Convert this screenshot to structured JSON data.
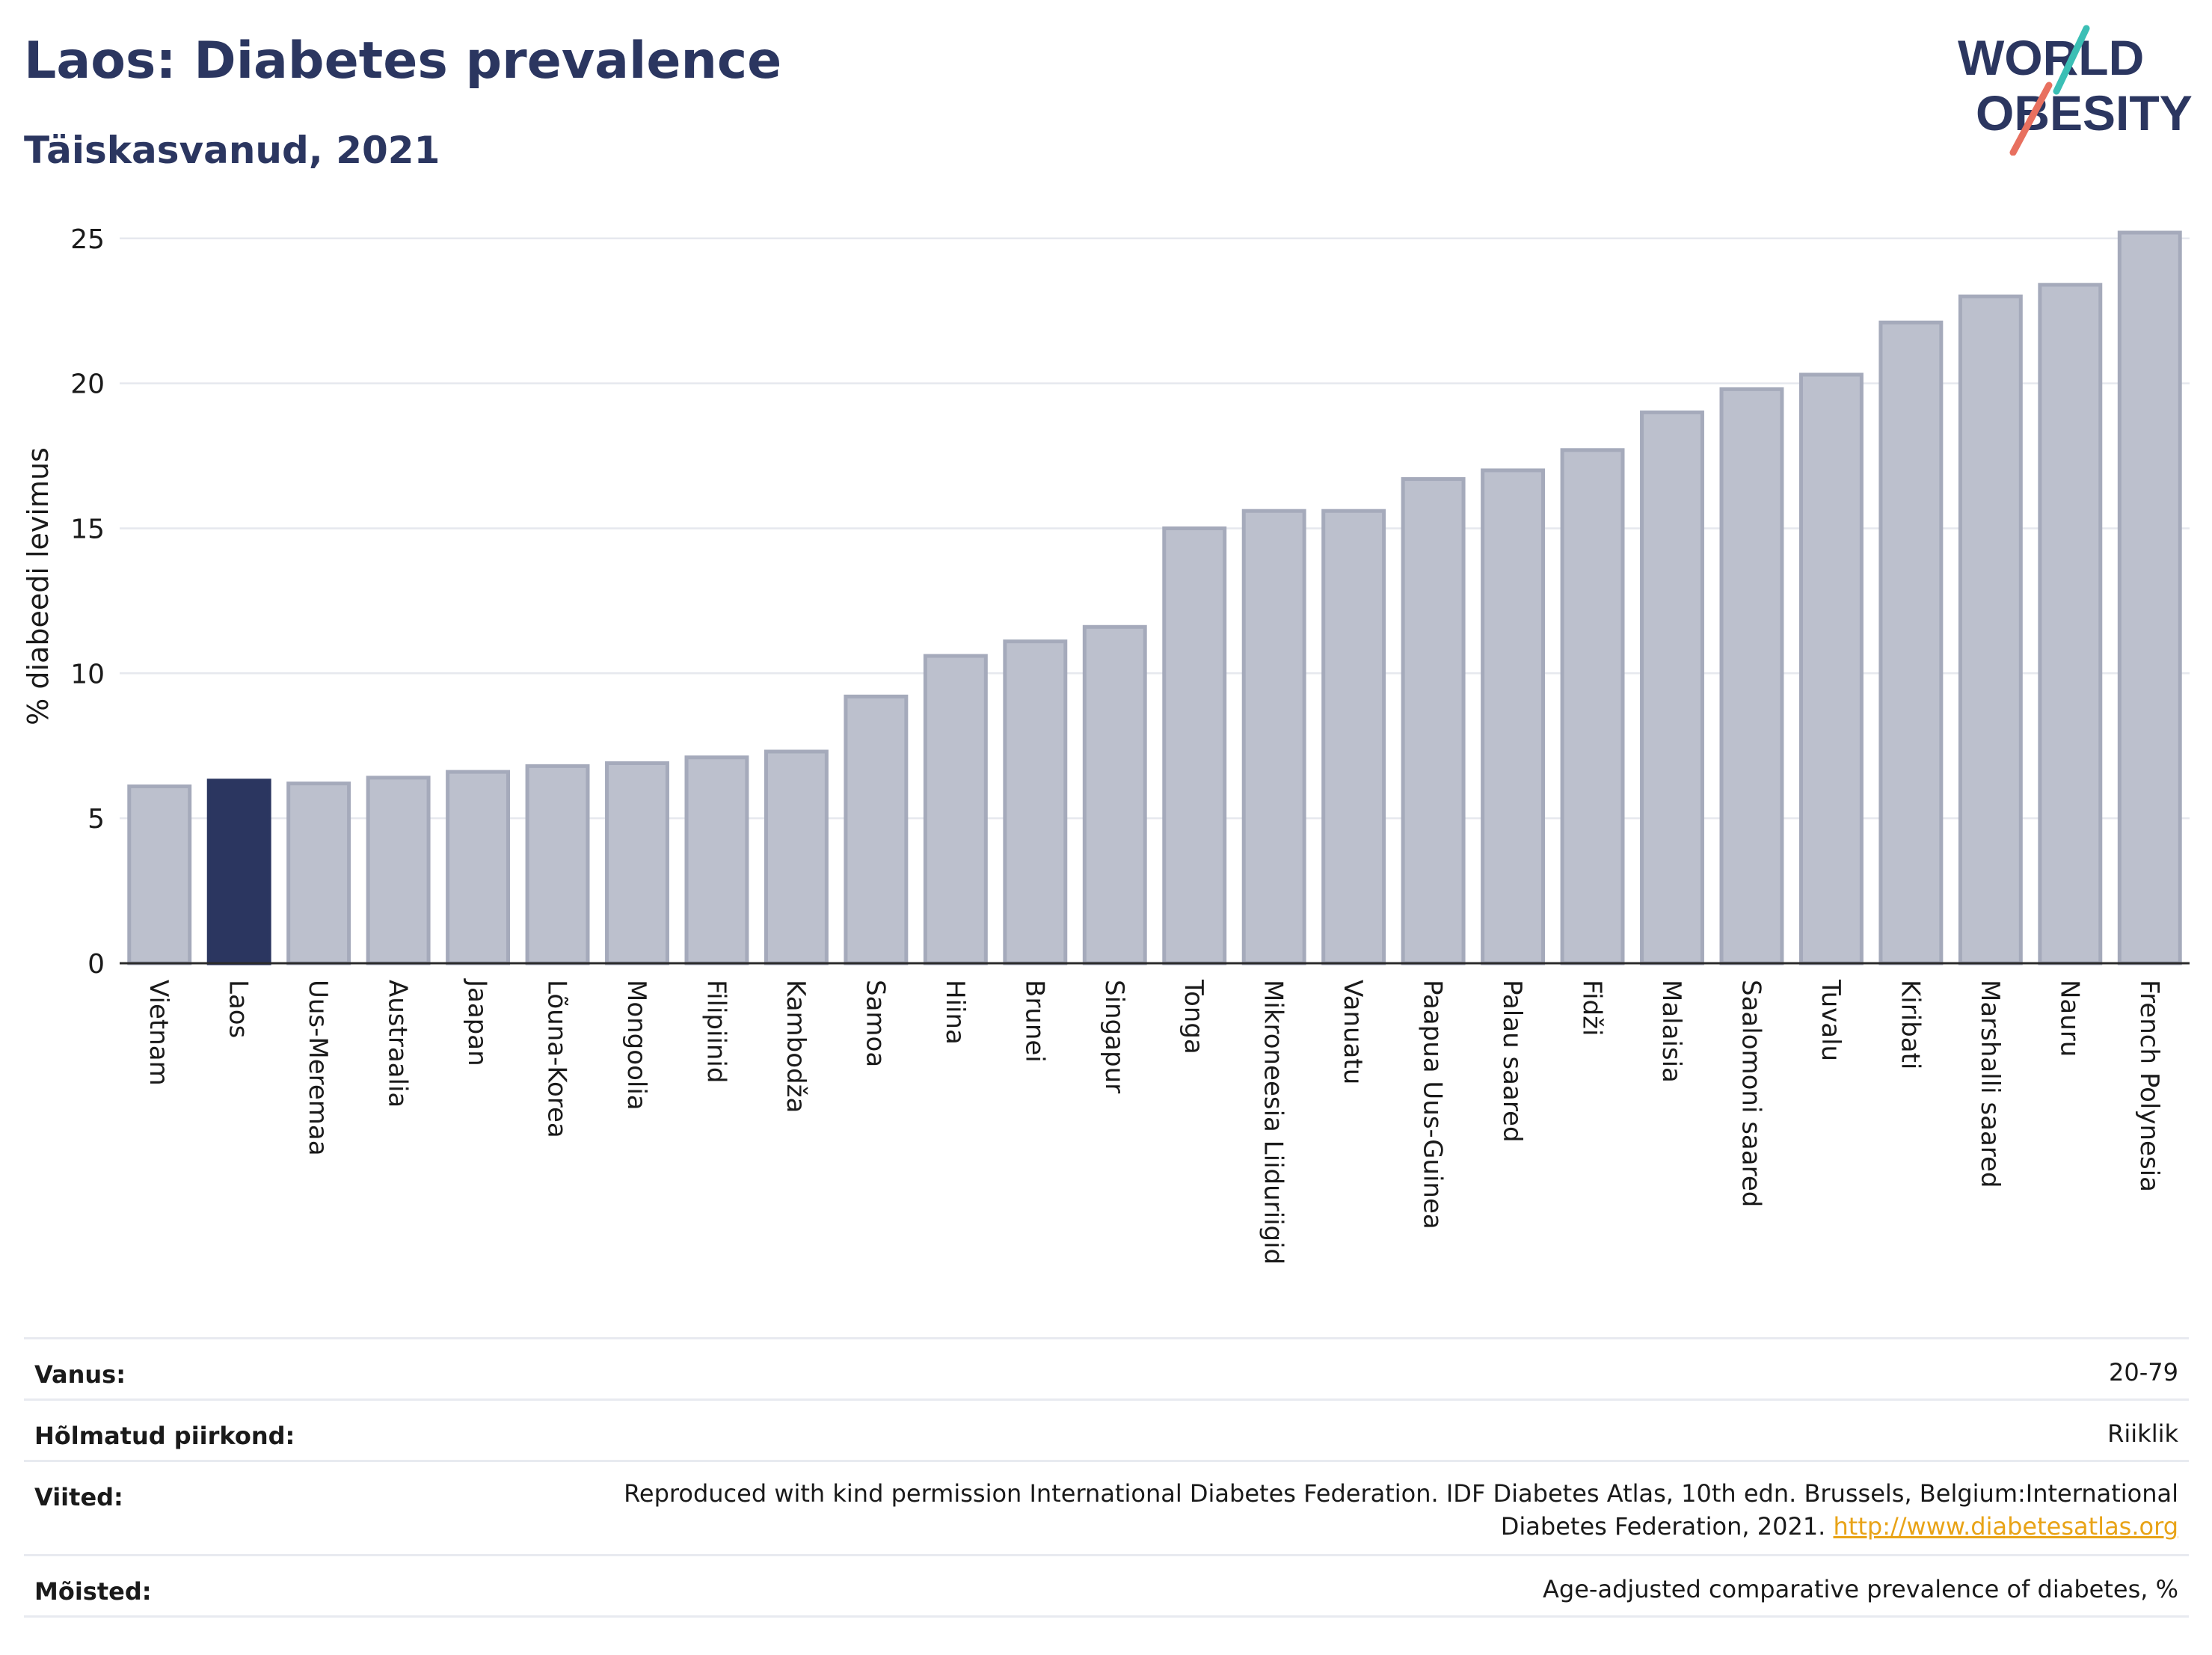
{
  "header": {
    "title": "Laos: Diabetes prevalence",
    "subtitle": "Täiskasvanud, 2021"
  },
  "logo": {
    "line1": "WORLD",
    "line2": "OBESITY",
    "accent_teal": "#3bbfb5",
    "accent_coral": "#e8705f"
  },
  "colors": {
    "bar": "#bcc0cd",
    "bar_border": "#a5aabb",
    "highlight": "#2b3660",
    "text": "#2b3660"
  },
  "chart_data": {
    "type": "bar",
    "title": "Laos: Diabetes prevalence",
    "subtitle": "Täiskasvanud, 2021",
    "ylabel": "% diabeedi levimus",
    "xlabel": "",
    "ylim": [
      0,
      26
    ],
    "yticks": [
      0,
      5,
      10,
      15,
      20,
      25
    ],
    "grid": true,
    "highlight": "Laos",
    "categories": [
      "Vietnam",
      "Laos",
      "Uus-Meremaa",
      "Austraalia",
      "Jaapan",
      "Lõuna-Korea",
      "Mongoolia",
      "Filipiinid",
      "Kambodža",
      "Samoa",
      "Hiina",
      "Brunei",
      "Singapur",
      "Tonga",
      "Mikroneesia Liiduriigid",
      "Vanuatu",
      "Paapua Uus-Guinea",
      "Palau saared",
      "Fidži",
      "Malaisia",
      "Saalomoni saared",
      "Tuvalu",
      "Kiribati",
      "Marshalli saared",
      "Nauru",
      "French Polynesia"
    ],
    "values": [
      6.1,
      6.3,
      6.2,
      6.4,
      6.6,
      6.8,
      6.9,
      7.1,
      7.3,
      9.2,
      10.6,
      11.1,
      11.6,
      15.0,
      15.6,
      15.6,
      16.7,
      17.0,
      17.7,
      19.0,
      19.8,
      20.3,
      22.1,
      23.0,
      23.4,
      25.2
    ]
  },
  "meta": [
    {
      "label": "Vanus:",
      "value": "20-79"
    },
    {
      "label": "Hõlmatud piirkond:",
      "value": "Riiklik"
    },
    {
      "label": "Viited:",
      "value": "Reproduced with kind permission International Diabetes Federation.  IDF Diabetes Atlas, 10th edn. Brussels, Belgium:International Diabetes Federation, 2021.",
      "link": "http://www.diabetesatlas.org"
    },
    {
      "label": "Mõisted:",
      "value": "Age-adjusted comparative prevalence of diabetes, %"
    }
  ]
}
